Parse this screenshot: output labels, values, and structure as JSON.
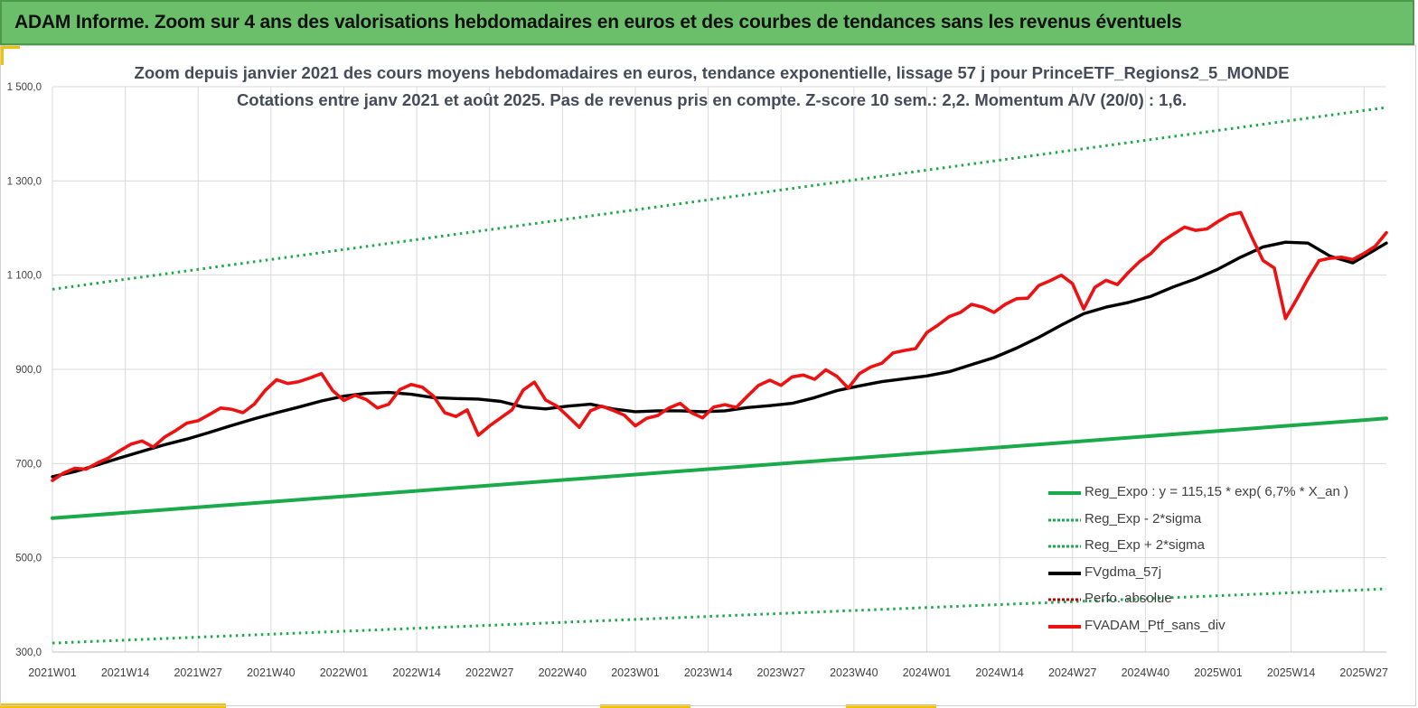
{
  "header": {
    "title": "ADAM Informe. Zoom sur 4 ans des valorisations hebdomadaires en euros et des courbes de tendances sans les revenus éventuels"
  },
  "chart_data": {
    "type": "line",
    "title": "Zoom depuis janvier 2021 des cours moyens hebdomadaires  en euros, tendance exponentielle, lissage 57 j pour PrinceETF_Regions2_5_MONDE",
    "subtitle": "Cotations entre janv 2021 et août 2025. Pas de revenus pris en compte. Z-score 10 sem.: 2,2. Momentum A/V (20/0) : 1,6.",
    "xlabel": "",
    "ylabel": "",
    "ylim": [
      300,
      1500
    ],
    "yticks": [
      "300,0",
      "500,0",
      "700,0",
      "900,0",
      "1 100,0",
      "1 300,0",
      "1 500,0"
    ],
    "x_tick_labels": [
      "2021W01",
      "2021W14",
      "2021W27",
      "2021W40",
      "2022W01",
      "2022W14",
      "2022W27",
      "2022W40",
      "2023W01",
      "2023W14",
      "2023W27",
      "2023W40",
      "2024W01",
      "2024W14",
      "2024W27",
      "2024W40",
      "2025W01",
      "2025W14",
      "2025W27"
    ],
    "x_range_weeks": [
      0,
      238
    ],
    "grid": "vertical and horizontal",
    "legend_position": "bottom-right",
    "series": [
      {
        "name": "Reg_Expo : y = 115,15 * exp( 6,7% *  X_an )",
        "color": "#1aaa4a",
        "style": "solid",
        "x": [
          0,
          238
        ],
        "values": [
          584,
          796
        ]
      },
      {
        "name": "Reg_Exp - 2*sigma",
        "color": "#1aaa4a",
        "style": "dotted",
        "x": [
          0,
          238
        ],
        "values": [
          319,
          434
        ]
      },
      {
        "name": "Reg_Exp + 2*sigma",
        "color": "#1aaa4a",
        "style": "dotted",
        "x": [
          0,
          238
        ],
        "values": [
          1070,
          1456
        ]
      },
      {
        "name": "FVgdma_57j",
        "color": "#000000",
        "style": "solid",
        "x": [
          0,
          4,
          8,
          12,
          16,
          20,
          24,
          28,
          32,
          36,
          40,
          44,
          48,
          52,
          56,
          60,
          64,
          68,
          72,
          76,
          80,
          84,
          88,
          92,
          96,
          100,
          104,
          108,
          112,
          116,
          120,
          124,
          128,
          132,
          136,
          140,
          144,
          148,
          152,
          156,
          160,
          164,
          168,
          172,
          176,
          180,
          184,
          188,
          192,
          196,
          200,
          204,
          208,
          212,
          216,
          220,
          224,
          228,
          232,
          238
        ],
        "values": [
          672,
          683,
          697,
          712,
          726,
          740,
          752,
          766,
          781,
          795,
          808,
          820,
          833,
          843,
          849,
          851,
          847,
          840,
          838,
          837,
          832,
          820,
          816,
          822,
          826,
          816,
          810,
          812,
          812,
          810,
          812,
          819,
          823,
          828,
          840,
          855,
          865,
          874,
          880,
          886,
          895,
          910,
          925,
          945,
          968,
          994,
          1018,
          1032,
          1042,
          1055,
          1075,
          1092,
          1113,
          1138,
          1160,
          1170,
          1168,
          1140,
          1126,
          1168
        ]
      },
      {
        "name": "Perfo. absolue",
        "color": "#c00000",
        "style": "dotted",
        "x": [],
        "values": []
      },
      {
        "name": "FVADAM_Ptf_sans_div",
        "color": "#ee1111",
        "style": "solid",
        "x": [
          0,
          2,
          4,
          6,
          8,
          10,
          12,
          14,
          16,
          18,
          20,
          22,
          24,
          26,
          28,
          30,
          32,
          34,
          36,
          38,
          40,
          42,
          44,
          46,
          48,
          50,
          52,
          54,
          56,
          58,
          60,
          62,
          64,
          66,
          68,
          70,
          72,
          74,
          76,
          78,
          80,
          82,
          84,
          86,
          88,
          90,
          92,
          94,
          96,
          98,
          100,
          102,
          104,
          106,
          108,
          110,
          112,
          114,
          116,
          118,
          120,
          122,
          124,
          126,
          128,
          130,
          132,
          134,
          136,
          138,
          140,
          142,
          144,
          146,
          148,
          150,
          152,
          154,
          156,
          158,
          160,
          162,
          164,
          166,
          168,
          170,
          172,
          174,
          176,
          178,
          180,
          182,
          184,
          186,
          188,
          190,
          192,
          194,
          196,
          198,
          200,
          202,
          204,
          206,
          208,
          210,
          212,
          214,
          216,
          218,
          220,
          222,
          224,
          226,
          228,
          230,
          232,
          234,
          236,
          238
        ],
        "values": [
          664,
          680,
          690,
          688,
          701,
          712,
          727,
          741,
          748,
          735,
          756,
          770,
          786,
          791,
          804,
          818,
          815,
          808,
          826,
          856,
          878,
          870,
          874,
          882,
          891,
          855,
          834,
          845,
          836,
          818,
          826,
          857,
          868,
          862,
          843,
          808,
          800,
          814,
          760,
          780,
          797,
          814,
          856,
          873,
          835,
          822,
          800,
          777,
          812,
          822,
          813,
          803,
          780,
          796,
          802,
          818,
          828,
          808,
          797,
          820,
          825,
          819,
          843,
          866,
          877,
          866,
          884,
          888,
          879,
          899,
          885,
          860,
          891,
          905,
          913,
          935,
          940,
          944,
          978,
          994,
          1012,
          1021,
          1038,
          1032,
          1021,
          1038,
          1050,
          1051,
          1078,
          1088,
          1100,
          1082,
          1028,
          1074,
          1089,
          1080,
          1106,
          1129,
          1146,
          1171,
          1187,
          1202,
          1195,
          1198,
          1214,
          1228,
          1233,
          1180,
          1131,
          1115,
          1008,
          1049,
          1092,
          1131,
          1136,
          1138,
          1133,
          1146,
          1161,
          1190
        ]
      }
    ]
  }
}
